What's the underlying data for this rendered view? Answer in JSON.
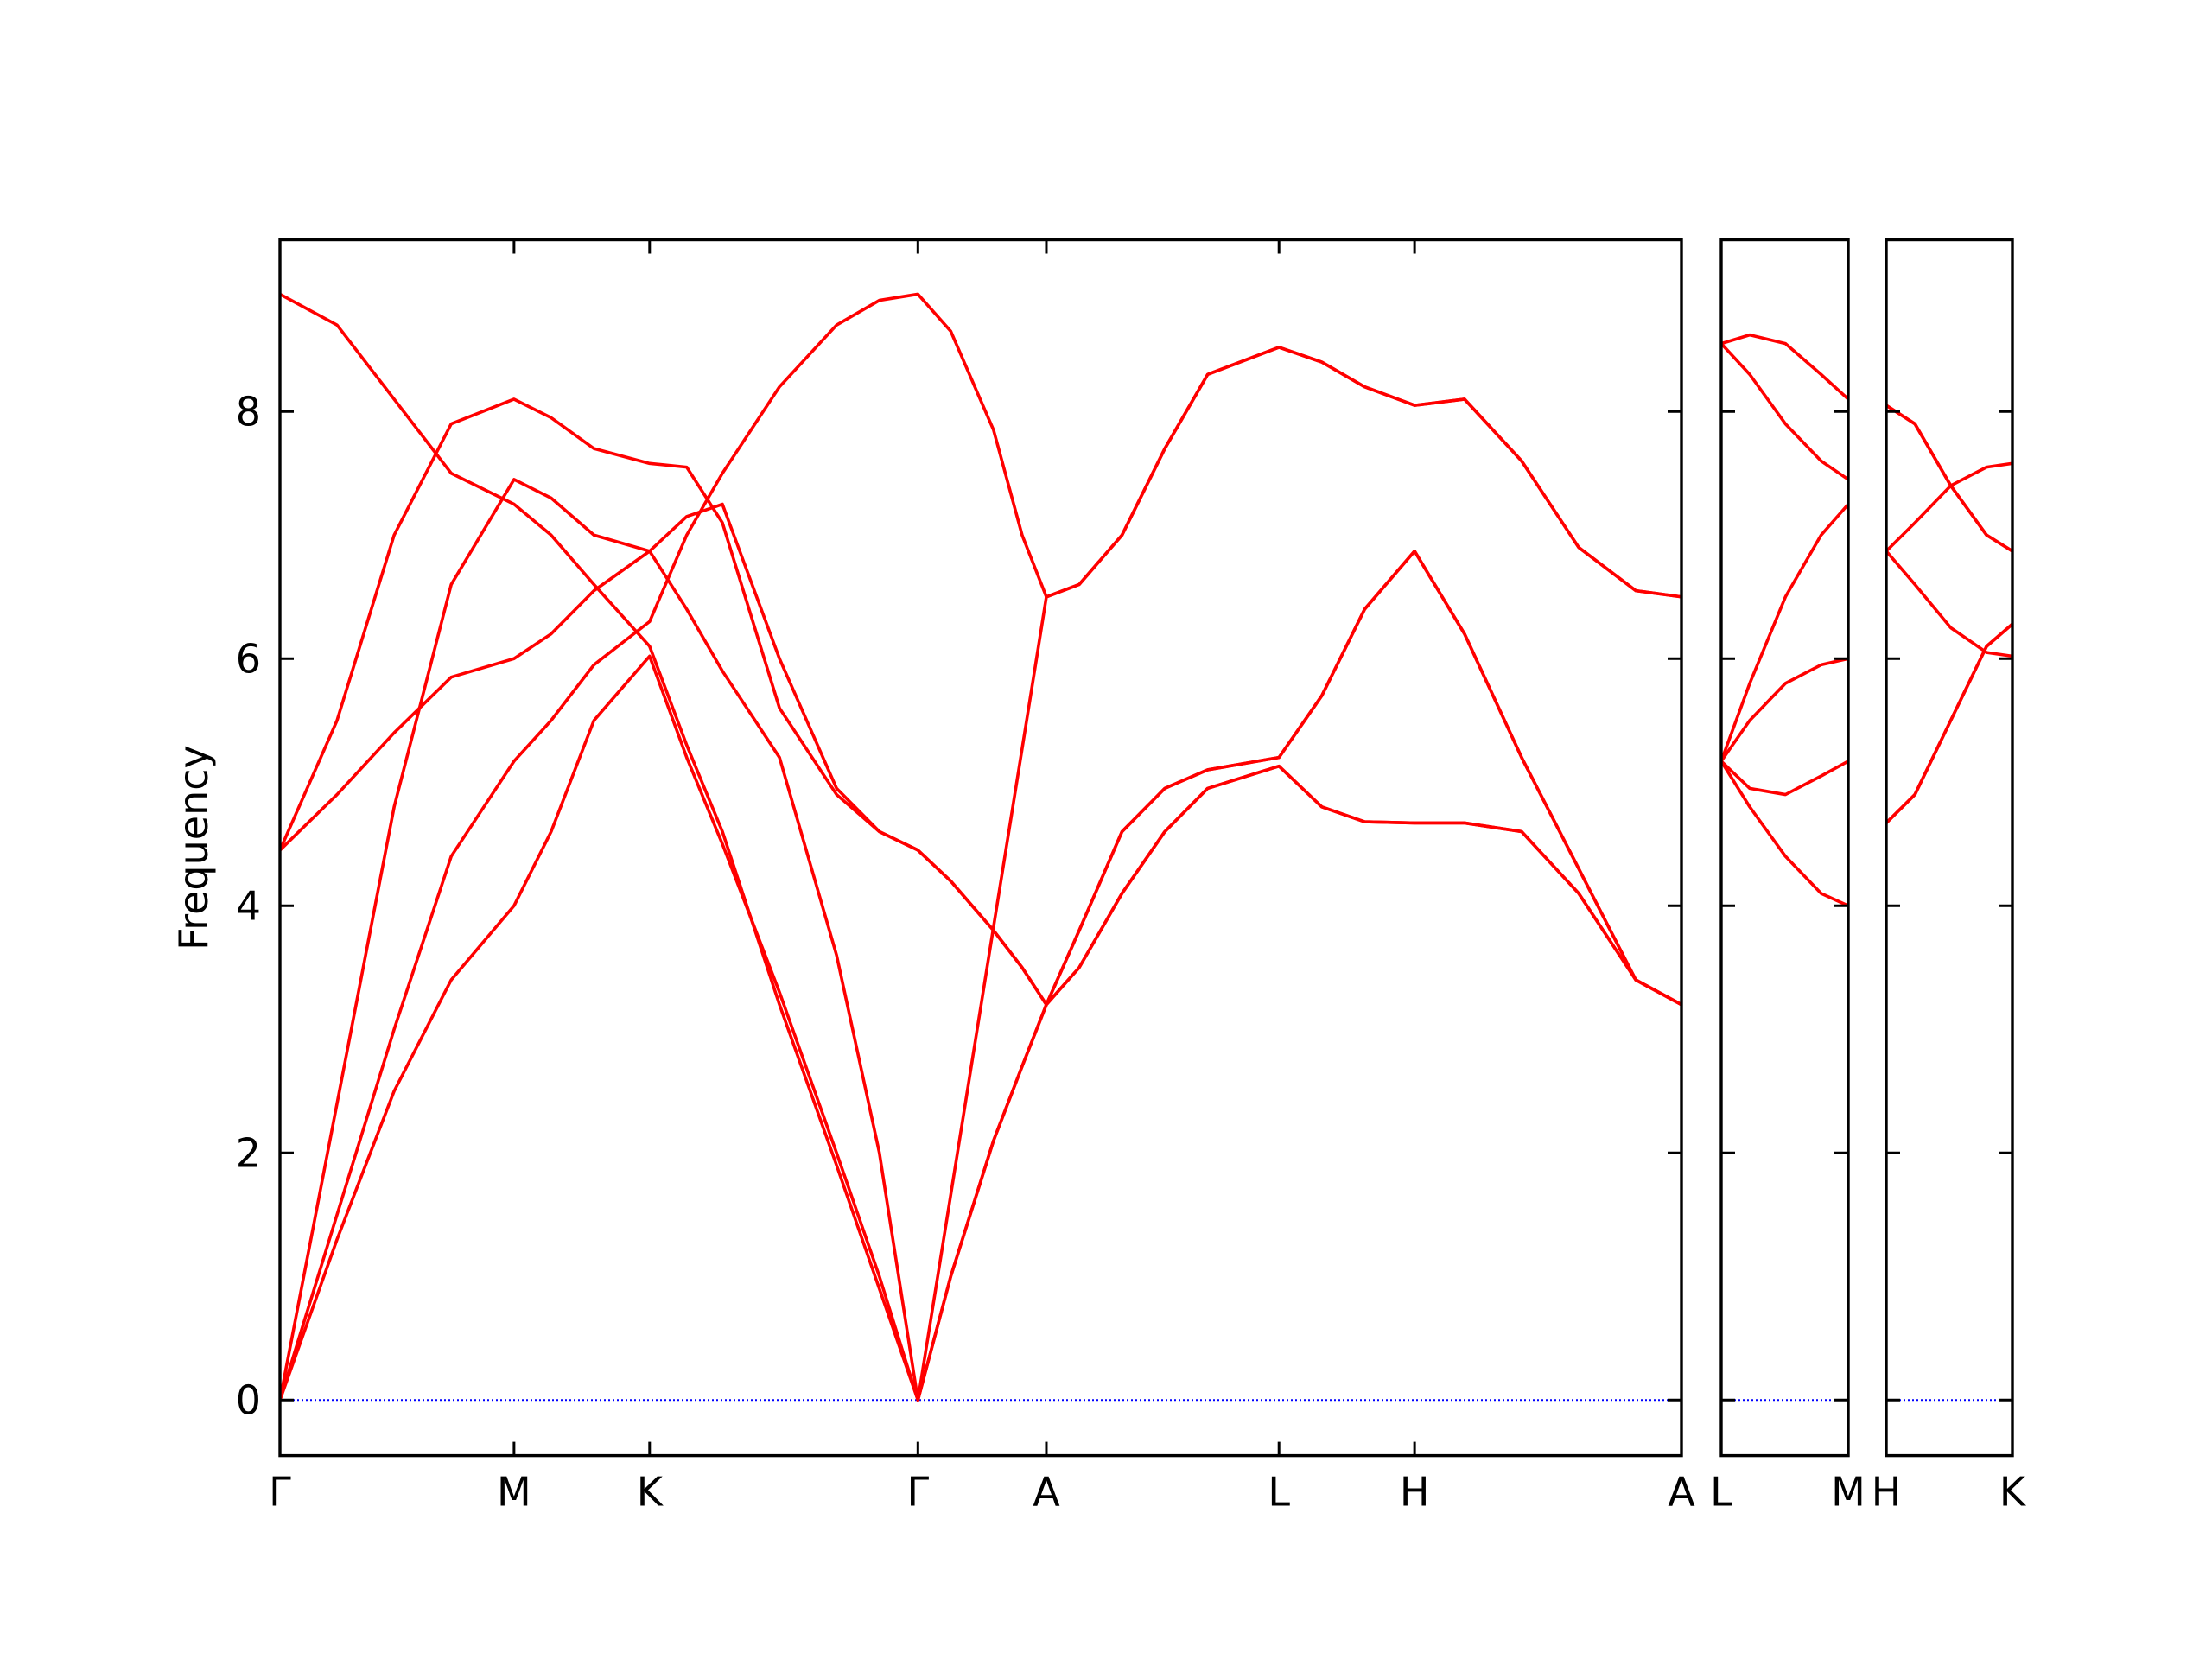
{
  "chart_data": [
    {
      "type": "line",
      "ylabel": "Frequency",
      "show_ytick_labels": true,
      "zero_line": {
        "color": "#0000ff",
        "style": "dotted"
      },
      "x": [
        0,
        0.4,
        0.8,
        1.2,
        1.64,
        1.9,
        2.2,
        2.59,
        2.85,
        3.1,
        3.5,
        3.9,
        4.2,
        4.47,
        4.7,
        5.0,
        5.2,
        5.37,
        5.6,
        5.9,
        6.2,
        6.5,
        7.0,
        7.3,
        7.6,
        7.95,
        8.3,
        8.7,
        9.1,
        9.5,
        9.82
      ],
      "xlim": [
        0,
        9.82
      ],
      "xticks": [
        {
          "value": 0,
          "label": "Γ"
        },
        {
          "value": 1.64,
          "label": "M"
        },
        {
          "value": 2.59,
          "label": "K"
        },
        {
          "value": 4.47,
          "label": "Γ"
        },
        {
          "value": 5.37,
          "label": "A"
        },
        {
          "value": 7.0,
          "label": "L"
        },
        {
          "value": 7.95,
          "label": "H"
        },
        {
          "value": 9.82,
          "label": "A"
        }
      ],
      "ylim": [
        -0.45,
        9.39
      ],
      "yticks": [
        0,
        2,
        4,
        6,
        8
      ],
      "series": [
        {
          "color": "#ff0000",
          "values": [
            8.95,
            8.7,
            8.1,
            7.5,
            7.25,
            7.0,
            6.6,
            6.1,
            5.3,
            4.6,
            3.2,
            1.9,
            0.9,
            0,
            1.66,
            3.83,
            5.27,
            6.5,
            6.6,
            7.0,
            7.7,
            8.3,
            8.52,
            8.4,
            8.2,
            8.05,
            8.1,
            7.6,
            6.9,
            6.55,
            6.5
          ]
        },
        {
          "color": "#ff0000",
          "values": [
            4.45,
            5.5,
            7.0,
            7.9,
            8.1,
            7.95,
            7.7,
            7.58,
            7.55,
            7.1,
            5.6,
            4.9,
            4.6,
            4.45,
            4.2,
            3.8,
            3.5,
            3.2,
            3.8,
            4.6,
            4.95,
            5.1,
            5.2,
            5.7,
            6.4,
            6.87,
            6.2,
            5.2,
            4.3,
            3.4,
            3.2
          ]
        },
        {
          "color": "#ff0000",
          "values": [
            4.45,
            4.9,
            5.4,
            5.85,
            6.0,
            6.2,
            6.55,
            6.87,
            6.4,
            5.9,
            5.2,
            3.6,
            2.0,
            0,
            1.0,
            2.1,
            2.7,
            3.2,
            3.5,
            4.1,
            4.6,
            4.95,
            5.13,
            4.8,
            4.68,
            4.67,
            4.67,
            4.6,
            4.1,
            3.4,
            3.2
          ]
        },
        {
          "color": "#ff0000",
          "values": [
            0,
            2.4,
            4.8,
            6.6,
            7.45,
            7.3,
            7.0,
            6.87,
            7.15,
            7.25,
            6.0,
            4.95,
            4.6,
            4.45,
            4.2,
            3.8,
            3.5,
            3.2,
            3.8,
            4.6,
            4.95,
            5.1,
            5.2,
            5.7,
            6.4,
            6.87,
            6.2,
            5.2,
            4.3,
            3.4,
            3.2
          ]
        },
        {
          "color": "#ff0000",
          "values": [
            0,
            1.3,
            2.5,
            3.4,
            4.0,
            4.6,
            5.5,
            6.02,
            5.2,
            4.5,
            3.3,
            2.0,
            1.0,
            0,
            1.0,
            2.1,
            2.7,
            3.2,
            3.5,
            4.1,
            4.6,
            4.95,
            5.13,
            4.8,
            4.68,
            4.67,
            4.67,
            4.6,
            4.1,
            3.4,
            3.2
          ]
        },
        {
          "color": "#ff0000",
          "values": [
            0,
            1.5,
            3.0,
            4.4,
            5.17,
            5.5,
            5.95,
            6.3,
            7.0,
            7.5,
            8.2,
            8.7,
            8.9,
            8.95,
            8.65,
            7.85,
            7.0,
            6.5,
            6.6,
            7.0,
            7.7,
            8.3,
            8.52,
            8.4,
            8.2,
            8.05,
            8.1,
            7.6,
            6.9,
            6.55,
            6.5
          ]
        }
      ]
    },
    {
      "type": "line",
      "show_ytick_labels": false,
      "zero_line": {
        "color": "#0000ff",
        "style": "dotted"
      },
      "x": [
        0,
        0.2,
        0.45,
        0.7,
        0.89
      ],
      "xlim": [
        0,
        0.89
      ],
      "xticks": [
        {
          "value": 0,
          "label": "L"
        },
        {
          "value": 0.89,
          "label": "M"
        }
      ],
      "ylim": [
        -0.45,
        9.39
      ],
      "yticks": [
        0,
        2,
        4,
        6,
        8
      ],
      "series": [
        {
          "color": "#ff0000",
          "values": [
            8.55,
            8.62,
            8.55,
            8.3,
            8.1
          ]
        },
        {
          "color": "#ff0000",
          "values": [
            8.55,
            8.3,
            7.9,
            7.6,
            7.45
          ]
        },
        {
          "color": "#ff0000",
          "values": [
            5.17,
            5.8,
            6.5,
            7.0,
            7.25
          ]
        },
        {
          "color": "#ff0000",
          "values": [
            5.17,
            5.5,
            5.8,
            5.95,
            6.0
          ]
        },
        {
          "color": "#ff0000",
          "values": [
            5.17,
            4.95,
            4.9,
            5.05,
            5.17
          ]
        },
        {
          "color": "#ff0000",
          "values": [
            5.17,
            4.8,
            4.4,
            4.1,
            4.0
          ]
        }
      ]
    },
    {
      "type": "line",
      "show_ytick_labels": false,
      "zero_line": {
        "color": "#0000ff",
        "style": "dotted"
      },
      "x": [
        0,
        0.2,
        0.45,
        0.7,
        0.88
      ],
      "xlim": [
        0,
        0.88
      ],
      "xticks": [
        {
          "value": 0,
          "label": "H"
        },
        {
          "value": 0.88,
          "label": "K"
        }
      ],
      "ylim": [
        -0.45,
        9.39
      ],
      "yticks": [
        0,
        2,
        4,
        6,
        8
      ],
      "series": [
        {
          "color": "#ff0000",
          "values": [
            8.05,
            7.9,
            7.4,
            7.0,
            6.87
          ]
        },
        {
          "color": "#ff0000",
          "values": [
            8.05,
            7.9,
            7.4,
            7.0,
            6.87
          ]
        },
        {
          "color": "#ff0000",
          "values": [
            6.87,
            7.1,
            7.4,
            7.55,
            7.58
          ]
        },
        {
          "color": "#ff0000",
          "values": [
            6.87,
            6.6,
            6.25,
            6.05,
            6.02
          ]
        },
        {
          "color": "#ff0000",
          "values": [
            4.67,
            4.9,
            5.5,
            6.1,
            6.28
          ]
        },
        {
          "color": "#ff0000",
          "values": [
            4.67,
            4.9,
            5.5,
            6.1,
            6.28
          ]
        }
      ]
    }
  ]
}
